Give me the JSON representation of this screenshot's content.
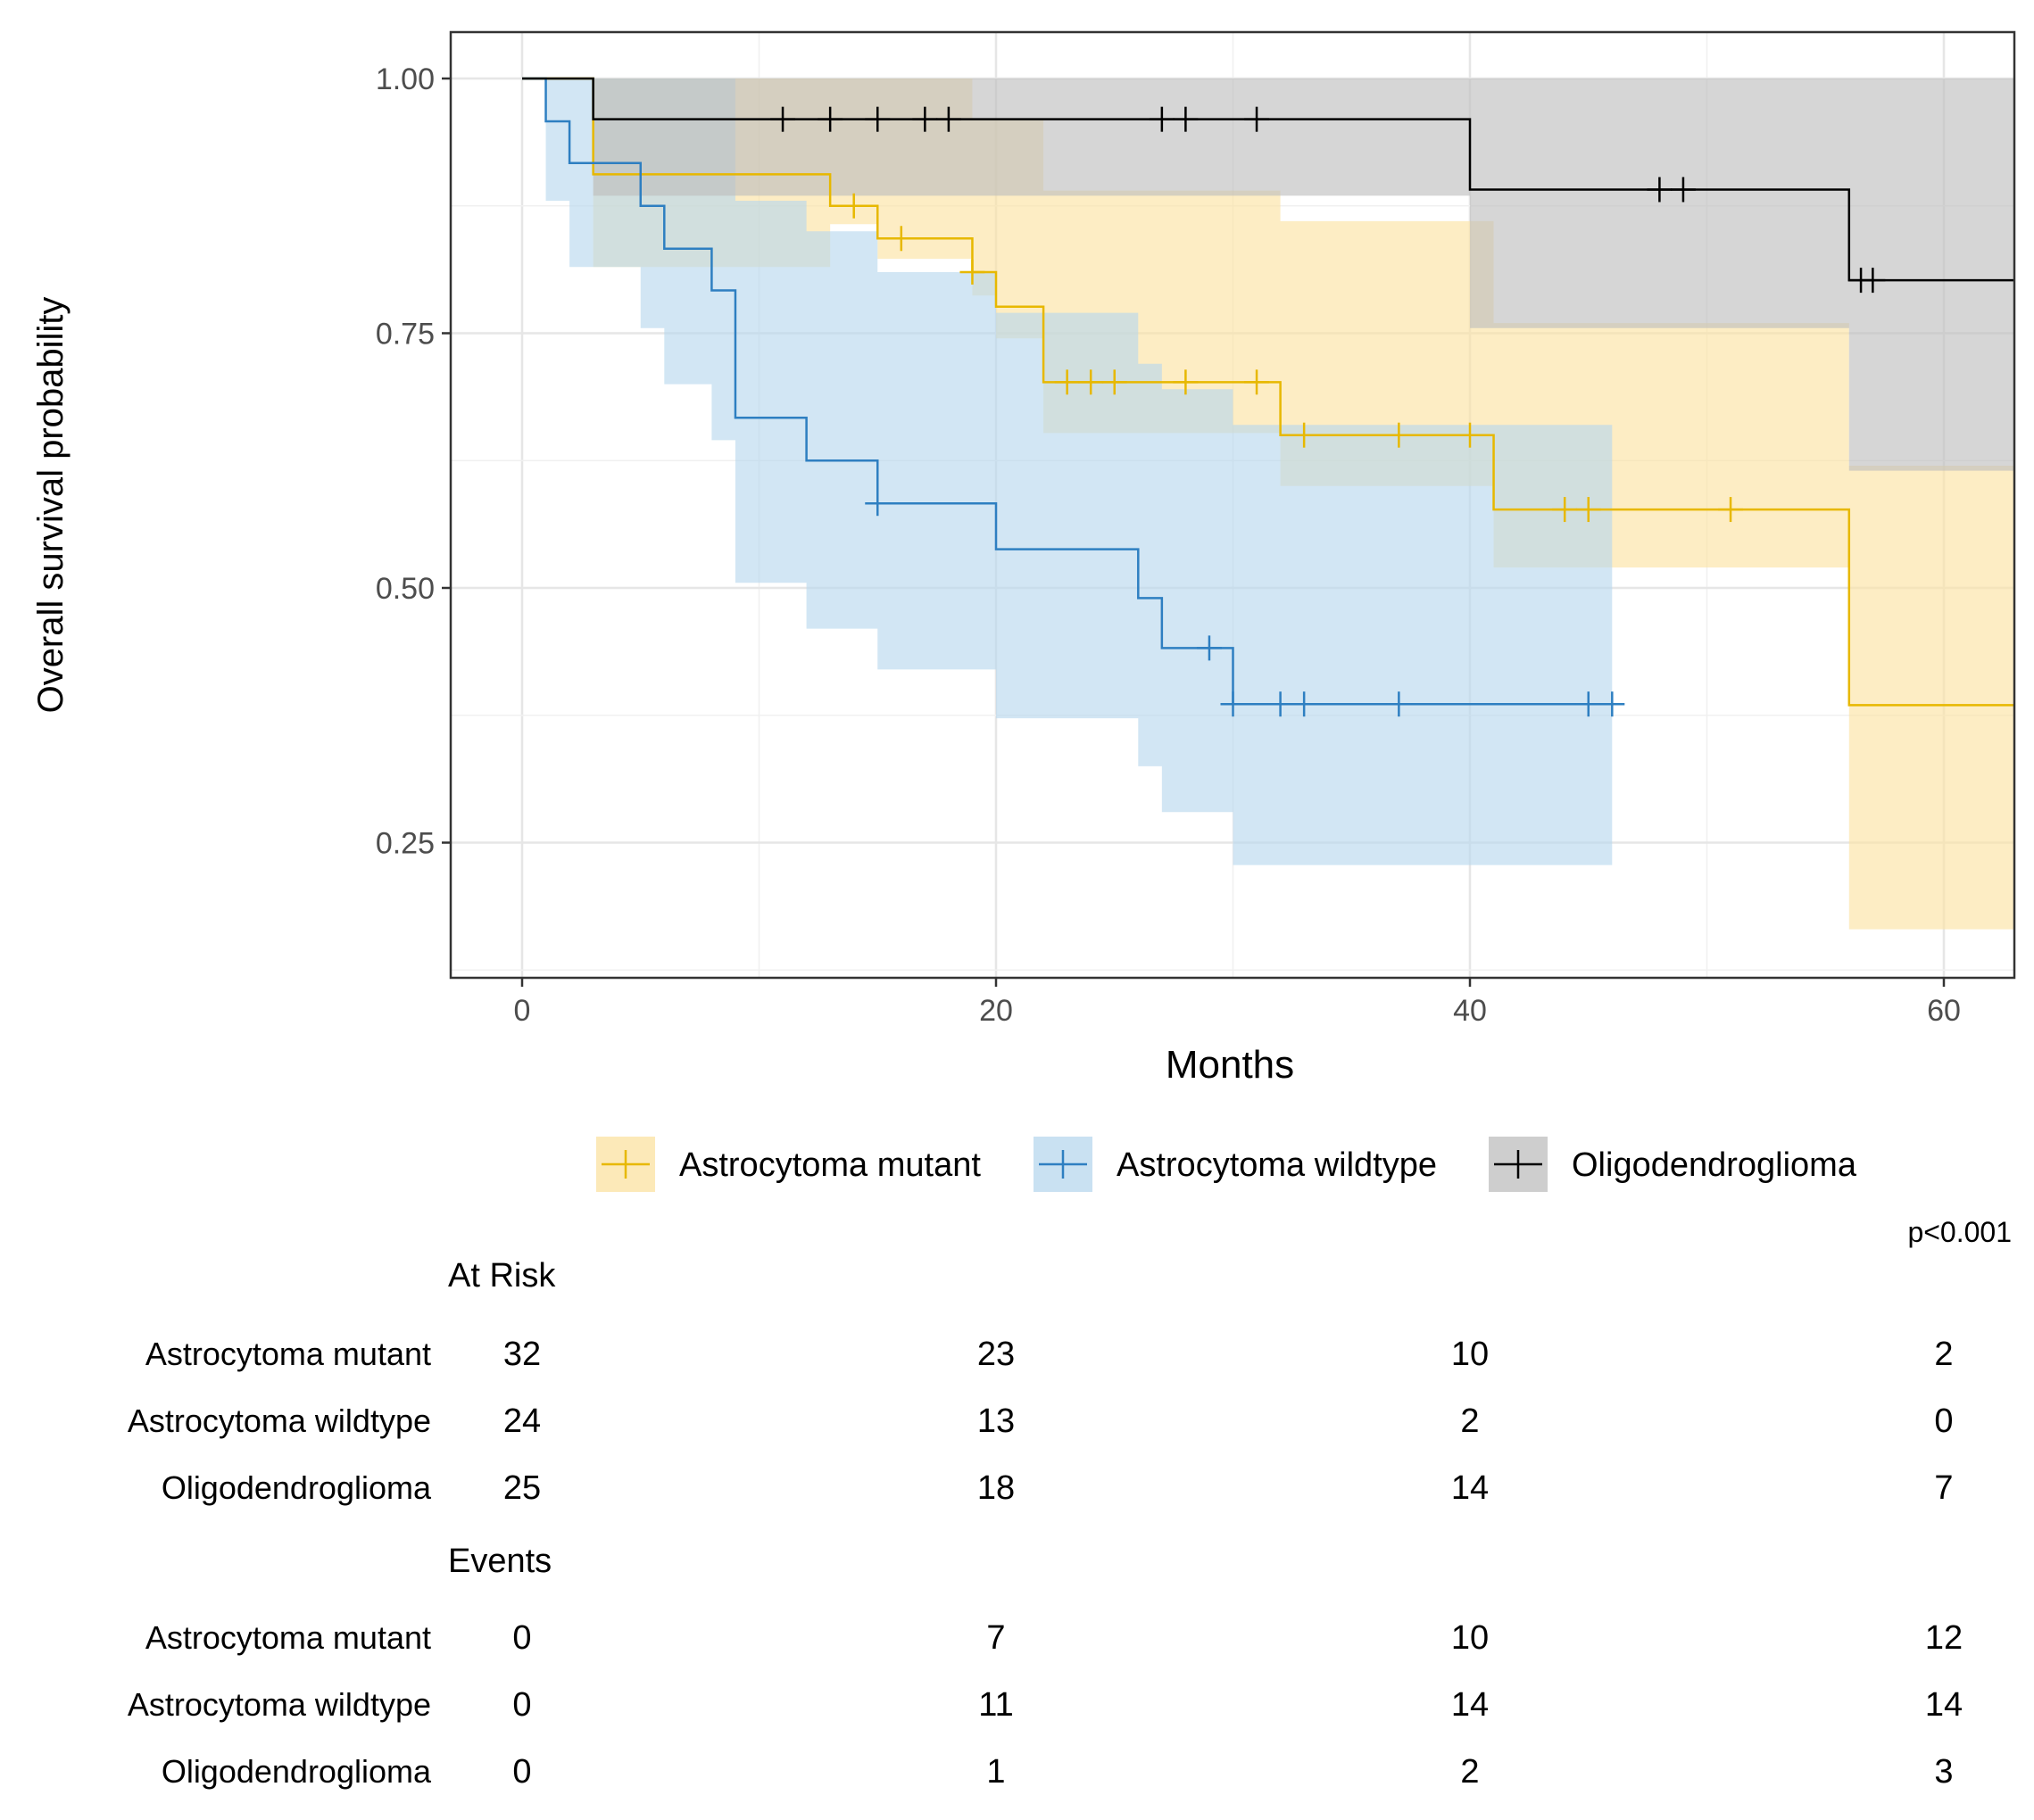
{
  "chart_data": {
    "type": "line",
    "subtype": "kaplan-meier",
    "title": "",
    "xlabel": "Months",
    "ylabel": "Overall survival probability",
    "xlim": [
      -3,
      63
    ],
    "ylim": [
      0.125,
      1.05
    ],
    "x_ticks": [
      0,
      20,
      40,
      60
    ],
    "x_tick_labels": [
      "0",
      "20",
      "40",
      "60"
    ],
    "y_ticks": [
      0.25,
      0.5,
      0.75,
      1.0
    ],
    "y_tick_labels": [
      "0.25",
      "0.50",
      "0.75",
      "1.00"
    ],
    "grid": true,
    "legend_position": "bottom",
    "pvalue": "p<0.001",
    "series": [
      {
        "name": "Astrocytoma mutant",
        "color": "#E7B800",
        "band_color": "#FBE2A0",
        "steps": [
          [
            0,
            1.0
          ],
          [
            3,
            0.906
          ],
          [
            13,
            0.875
          ],
          [
            15,
            0.843
          ],
          [
            19,
            0.81
          ],
          [
            20,
            0.776
          ],
          [
            22,
            0.702
          ],
          [
            32,
            0.65
          ],
          [
            41,
            0.577
          ],
          [
            56,
            0.385
          ],
          [
            63,
            0.385
          ]
        ],
        "ci_band": [
          {
            "x": 0,
            "lo": 1.0,
            "hi": 1.0
          },
          {
            "x": 3,
            "lo": 0.815,
            "hi": 1.0
          },
          {
            "x": 13,
            "lo": 0.857,
            "hi": 1.0
          },
          {
            "x": 15,
            "lo": 0.823,
            "hi": 1.0
          },
          {
            "x": 19,
            "lo": 0.787,
            "hi": 0.96
          },
          {
            "x": 20,
            "lo": 0.745,
            "hi": 0.96
          },
          {
            "x": 22,
            "lo": 0.652,
            "hi": 0.89
          },
          {
            "x": 32,
            "lo": 0.6,
            "hi": 0.86
          },
          {
            "x": 41,
            "lo": 0.52,
            "hi": 0.76
          },
          {
            "x": 56,
            "lo": 0.165,
            "hi": 0.62
          },
          {
            "x": 63,
            "lo": 0.165,
            "hi": 0.62
          }
        ],
        "censors": [
          [
            14,
            0.875
          ],
          [
            16,
            0.843
          ],
          [
            19,
            0.81
          ],
          [
            23,
            0.702
          ],
          [
            24,
            0.702
          ],
          [
            25,
            0.702
          ],
          [
            28,
            0.702
          ],
          [
            31,
            0.702
          ],
          [
            33,
            0.65
          ],
          [
            37,
            0.65
          ],
          [
            40,
            0.65
          ],
          [
            44,
            0.577
          ],
          [
            45,
            0.577
          ],
          [
            51,
            0.577
          ]
        ]
      },
      {
        "name": "Astrocytoma wildtype",
        "color": "#2E7FC1",
        "band_color": "#B7D7EE",
        "steps": [
          [
            0,
            1.0
          ],
          [
            1,
            0.958
          ],
          [
            2,
            0.917
          ],
          [
            5,
            0.875
          ],
          [
            6,
            0.833
          ],
          [
            8,
            0.792
          ],
          [
            9,
            0.667
          ],
          [
            12,
            0.625
          ],
          [
            15,
            0.583
          ],
          [
            20,
            0.538
          ],
          [
            26,
            0.49
          ],
          [
            27,
            0.441
          ],
          [
            30,
            0.386
          ],
          [
            46.5,
            0.386
          ]
        ],
        "ci_band": [
          {
            "x": 0,
            "lo": 1.0,
            "hi": 1.0
          },
          {
            "x": 1,
            "lo": 0.88,
            "hi": 1.0
          },
          {
            "x": 2,
            "lo": 0.815,
            "hi": 1.0
          },
          {
            "x": 5,
            "lo": 0.755,
            "hi": 1.0
          },
          {
            "x": 6,
            "lo": 0.7,
            "hi": 1.0
          },
          {
            "x": 8,
            "lo": 0.645,
            "hi": 1.0
          },
          {
            "x": 9,
            "lo": 0.505,
            "hi": 0.88
          },
          {
            "x": 12,
            "lo": 0.46,
            "hi": 0.85
          },
          {
            "x": 15,
            "lo": 0.42,
            "hi": 0.81
          },
          {
            "x": 20,
            "lo": 0.372,
            "hi": 0.77
          },
          {
            "x": 26,
            "lo": 0.325,
            "hi": 0.72
          },
          {
            "x": 27,
            "lo": 0.28,
            "hi": 0.695
          },
          {
            "x": 30,
            "lo": 0.228,
            "hi": 0.66
          },
          {
            "x": 46,
            "lo": 0.228,
            "hi": 0.66
          }
        ],
        "censors": [
          [
            15,
            0.583
          ],
          [
            29,
            0.441
          ],
          [
            30,
            0.386
          ],
          [
            32,
            0.386
          ],
          [
            33,
            0.386
          ],
          [
            37,
            0.386
          ],
          [
            45,
            0.386
          ],
          [
            46,
            0.386
          ]
        ]
      },
      {
        "name": "Oligodendroglioma",
        "color": "#000000",
        "band_color": "#BDBDBD",
        "steps": [
          [
            0,
            1.0
          ],
          [
            3,
            0.96
          ],
          [
            40,
            0.891
          ],
          [
            56,
            0.802
          ],
          [
            63,
            0.802
          ]
        ],
        "ci_band": [
          {
            "x": 0,
            "lo": 1.0,
            "hi": 1.0
          },
          {
            "x": 3,
            "lo": 0.885,
            "hi": 1.0
          },
          {
            "x": 40,
            "lo": 0.755,
            "hi": 1.0
          },
          {
            "x": 56,
            "lo": 0.615,
            "hi": 1.0
          },
          {
            "x": 63,
            "lo": 0.615,
            "hi": 1.0
          }
        ],
        "censors": [
          [
            11,
            0.96
          ],
          [
            13,
            0.96
          ],
          [
            15,
            0.96
          ],
          [
            17,
            0.96
          ],
          [
            18,
            0.96
          ],
          [
            27,
            0.96
          ],
          [
            28,
            0.96
          ],
          [
            31,
            0.96
          ],
          [
            48,
            0.891
          ],
          [
            49,
            0.891
          ],
          [
            56.5,
            0.802
          ],
          [
            57,
            0.802
          ]
        ]
      }
    ]
  },
  "risk_table": {
    "at_risk_title": "At Risk",
    "events_title": "Events",
    "time_points": [
      0,
      20,
      40,
      60
    ],
    "at_risk_rows": [
      {
        "label": "Astrocytoma mutant",
        "values": [
          "32",
          "23",
          "10",
          "2"
        ]
      },
      {
        "label": "Astrocytoma wildtype",
        "values": [
          "24",
          "13",
          "2",
          "0"
        ]
      },
      {
        "label": "Oligodendroglioma",
        "values": [
          "25",
          "18",
          "14",
          "7"
        ]
      }
    ],
    "events_rows": [
      {
        "label": "Astrocytoma mutant",
        "values": [
          "0",
          "7",
          "10",
          "12"
        ]
      },
      {
        "label": "Astrocytoma wildtype",
        "values": [
          "0",
          "11",
          "14",
          "14"
        ]
      },
      {
        "label": "Oligodendroglioma",
        "values": [
          "0",
          "1",
          "2",
          "3"
        ]
      }
    ]
  }
}
